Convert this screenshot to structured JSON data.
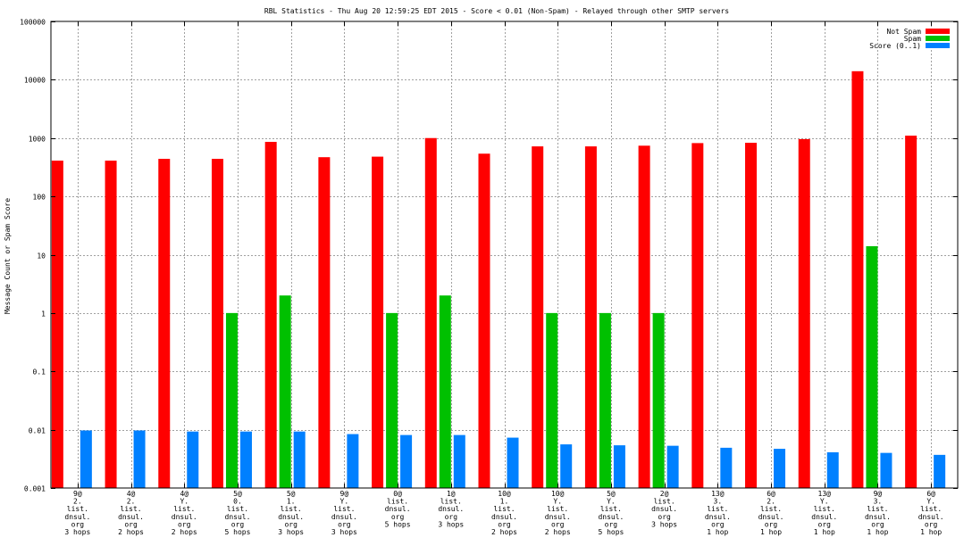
{
  "chart_data": {
    "type": "bar",
    "title": "RBL Statistics - Thu Aug 20 12:59:25 EDT 2015 - Score < 0.01 (Non-Spam) - Relayed through other SMTP servers",
    "ylabel": "Message Count or Spam Score",
    "xlabel": "",
    "yscale": "log",
    "ylim": [
      0.001,
      100000
    ],
    "yticks": [
      {
        "value": 0.001,
        "label": "0.001"
      },
      {
        "value": 0.01,
        "label": "0.01"
      },
      {
        "value": 0.1,
        "label": "0.1"
      },
      {
        "value": 1,
        "label": "1"
      },
      {
        "value": 10,
        "label": "10"
      },
      {
        "value": 100,
        "label": "100"
      },
      {
        "value": 1000,
        "label": "1000"
      },
      {
        "value": 10000,
        "label": "10000"
      },
      {
        "value": 100000,
        "label": "100000"
      }
    ],
    "grid": true,
    "legend_position": "top-right",
    "categories": [
      [
        "9@",
        "2.",
        "list.",
        "dnsul.",
        "org",
        "3 hops"
      ],
      [
        "4@",
        "2.",
        "list.",
        "dnsul.",
        "org",
        "2 hops"
      ],
      [
        "4@",
        "Y.",
        "list.",
        "dnsul.",
        "org",
        "2 hops"
      ],
      [
        "5@",
        "0.",
        "list.",
        "dnsul.",
        "org",
        "5 hops"
      ],
      [
        "5@",
        "1.",
        "list.",
        "dnsul.",
        "org",
        "3 hops"
      ],
      [
        "9@",
        "Y.",
        "list.",
        "dnsul.",
        "org",
        "3 hops"
      ],
      [
        "0@",
        "list.",
        "dnsul.",
        "org",
        "5 hops"
      ],
      [
        "1@",
        "list.",
        "dnsul.",
        "org",
        "3 hops"
      ],
      [
        "10@",
        "1.",
        "list.",
        "dnsul.",
        "org",
        "2 hops"
      ],
      [
        "10@",
        "Y.",
        "list.",
        "dnsul.",
        "org",
        "2 hops"
      ],
      [
        "5@",
        "Y.",
        "list.",
        "dnsul.",
        "org",
        "5 hops"
      ],
      [
        "2@",
        "list.",
        "dnsul.",
        "org",
        "3 hops"
      ],
      [
        "13@",
        "3.",
        "list.",
        "dnsul.",
        "org",
        "1 hop"
      ],
      [
        "6@",
        "2.",
        "list.",
        "dnsul.",
        "org",
        "1 hop"
      ],
      [
        "13@",
        "Y.",
        "list.",
        "dnsul.",
        "org",
        "1 hop"
      ],
      [
        "9@",
        "3.",
        "list.",
        "dnsul.",
        "org",
        "1 hop"
      ],
      [
        "6@",
        "Y.",
        "list.",
        "dnsul.",
        "org",
        "1 hop"
      ]
    ],
    "series": [
      {
        "name": "Not Spam",
        "color": "#ff0000",
        "values": [
          410,
          410,
          440,
          440,
          860,
          470,
          480,
          1000,
          540,
          720,
          720,
          740,
          820,
          830,
          960,
          14000,
          1100
        ]
      },
      {
        "name": "Spam",
        "color": "#00c000",
        "values": [
          null,
          null,
          null,
          1,
          2,
          null,
          1,
          2,
          null,
          1,
          1,
          1,
          null,
          null,
          null,
          14,
          null
        ]
      },
      {
        "name": "Score (0..1)",
        "color": "#0080ff",
        "values": [
          0.0097,
          0.0097,
          0.0093,
          0.0093,
          0.0093,
          0.0084,
          0.0081,
          0.0081,
          0.0073,
          0.0056,
          0.0054,
          0.0053,
          0.0049,
          0.0047,
          0.0041,
          0.004,
          0.0037
        ]
      }
    ]
  }
}
